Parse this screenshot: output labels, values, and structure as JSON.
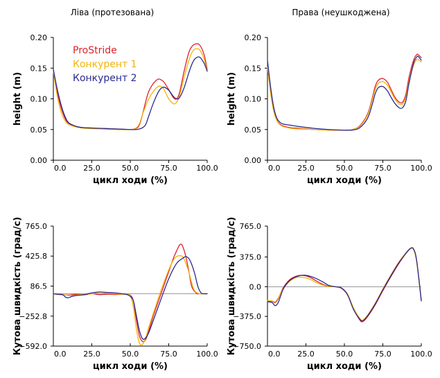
{
  "chart_data": [
    {
      "type": "line",
      "title": "Ліва (протезована)",
      "xlabel": "цикл ходи (%)",
      "ylabel": "height (m)",
      "xlim": [
        0,
        100
      ],
      "ylim": [
        0,
        0.2
      ],
      "xticks": [
        0,
        25,
        50,
        75,
        100
      ],
      "xtick_labels": [
        "0.0",
        "25.0",
        "50.0",
        "75.0",
        "100.0"
      ],
      "yticks": [
        0,
        0.05,
        0.1,
        0.15,
        0.2
      ],
      "ytick_labels": [
        "0.00",
        "0.05",
        "0.10",
        "0.15",
        "0.20"
      ],
      "legend": "top-left",
      "series": [
        {
          "name": "ProStride",
          "color": "#e0202a",
          "x": [
            0,
            2,
            4,
            6,
            8,
            10,
            15,
            20,
            30,
            40,
            50,
            54,
            56,
            58,
            60,
            62,
            65,
            68,
            70,
            72,
            75,
            78,
            80,
            82,
            85,
            88,
            90,
            92,
            95,
            98,
            100
          ],
          "y": [
            0.145,
            0.118,
            0.095,
            0.078,
            0.066,
            0.06,
            0.055,
            0.053,
            0.052,
            0.051,
            0.05,
            0.052,
            0.058,
            0.075,
            0.095,
            0.112,
            0.125,
            0.132,
            0.131,
            0.127,
            0.115,
            0.102,
            0.1,
            0.11,
            0.145,
            0.175,
            0.185,
            0.189,
            0.188,
            0.172,
            0.148
          ]
        },
        {
          "name": "Конкурент 1",
          "color": "#f2b40a",
          "x": [
            0,
            2,
            4,
            6,
            8,
            10,
            15,
            20,
            30,
            40,
            50,
            54,
            56,
            58,
            60,
            62,
            65,
            68,
            70,
            72,
            75,
            78,
            80,
            82,
            85,
            88,
            90,
            92,
            95,
            98,
            100
          ],
          "y": [
            0.145,
            0.112,
            0.088,
            0.072,
            0.063,
            0.058,
            0.054,
            0.052,
            0.051,
            0.05,
            0.05,
            0.053,
            0.06,
            0.075,
            0.088,
            0.1,
            0.112,
            0.12,
            0.12,
            0.115,
            0.1,
            0.092,
            0.094,
            0.105,
            0.135,
            0.162,
            0.175,
            0.181,
            0.18,
            0.165,
            0.145
          ]
        },
        {
          "name": "Конкурент 2",
          "color": "#2a2a8f",
          "x": [
            0,
            2,
            4,
            6,
            8,
            10,
            15,
            20,
            30,
            40,
            50,
            54,
            56,
            58,
            60,
            62,
            65,
            68,
            70,
            72,
            75,
            78,
            80,
            82,
            85,
            88,
            90,
            92,
            95,
            98,
            100
          ],
          "y": [
            0.148,
            0.122,
            0.1,
            0.082,
            0.069,
            0.061,
            0.055,
            0.053,
            0.052,
            0.051,
            0.05,
            0.05,
            0.051,
            0.053,
            0.058,
            0.072,
            0.093,
            0.11,
            0.117,
            0.119,
            0.114,
            0.104,
            0.1,
            0.102,
            0.118,
            0.142,
            0.156,
            0.165,
            0.168,
            0.158,
            0.145
          ]
        }
      ]
    },
    {
      "type": "line",
      "title": "Права (неушкоджена)",
      "xlabel": "цикл ходи (%)",
      "ylabel": "height (m)",
      "xlim": [
        0,
        100
      ],
      "ylim": [
        0,
        0.2
      ],
      "xticks": [
        0,
        25,
        50,
        75,
        100
      ],
      "xtick_labels": [
        "0.0",
        "25.0",
        "50.0",
        "75.0",
        "100.0"
      ],
      "yticks": [
        0,
        0.05,
        0.1,
        0.15,
        0.2
      ],
      "ytick_labels": [
        "0.00",
        "0.05",
        "0.10",
        "0.15",
        "0.20"
      ],
      "series": [
        {
          "name": "ProStride",
          "color": "#e0202a",
          "x": [
            0,
            2,
            4,
            6,
            8,
            10,
            15,
            20,
            30,
            40,
            50,
            55,
            60,
            65,
            68,
            70,
            72,
            75,
            78,
            80,
            83,
            86,
            88,
            90,
            92,
            95,
            97,
            98,
            100
          ],
          "y": [
            0.16,
            0.115,
            0.083,
            0.066,
            0.059,
            0.056,
            0.053,
            0.052,
            0.05,
            0.049,
            0.049,
            0.05,
            0.056,
            0.075,
            0.1,
            0.12,
            0.13,
            0.133,
            0.127,
            0.117,
            0.102,
            0.094,
            0.095,
            0.108,
            0.135,
            0.163,
            0.172,
            0.172,
            0.167
          ]
        },
        {
          "name": "Конкурент 1",
          "color": "#f2b40a",
          "x": [
            0,
            2,
            4,
            6,
            8,
            10,
            15,
            20,
            30,
            40,
            50,
            55,
            60,
            65,
            68,
            70,
            72,
            75,
            78,
            80,
            83,
            86,
            88,
            90,
            92,
            95,
            97,
            98,
            100
          ],
          "y": [
            0.152,
            0.11,
            0.08,
            0.065,
            0.058,
            0.055,
            0.052,
            0.051,
            0.05,
            0.049,
            0.049,
            0.05,
            0.055,
            0.073,
            0.097,
            0.115,
            0.125,
            0.128,
            0.122,
            0.113,
            0.099,
            0.091,
            0.092,
            0.103,
            0.128,
            0.155,
            0.164,
            0.164,
            0.16
          ]
        },
        {
          "name": "Конкурент 2",
          "color": "#2a2a8f",
          "x": [
            0,
            2,
            4,
            6,
            8,
            10,
            15,
            20,
            30,
            40,
            50,
            55,
            60,
            65,
            68,
            70,
            72,
            75,
            78,
            80,
            83,
            86,
            88,
            90,
            92,
            95,
            97,
            98,
            100
          ],
          "y": [
            0.163,
            0.12,
            0.087,
            0.069,
            0.062,
            0.059,
            0.057,
            0.055,
            0.052,
            0.05,
            0.049,
            0.049,
            0.053,
            0.068,
            0.09,
            0.108,
            0.118,
            0.12,
            0.113,
            0.104,
            0.092,
            0.085,
            0.086,
            0.097,
            0.125,
            0.158,
            0.168,
            0.169,
            0.163
          ]
        }
      ]
    },
    {
      "type": "line",
      "title": "",
      "xlabel": "цикл ходи (%)",
      "ylabel": "Кутова швидкість (град/с)",
      "xlim": [
        0,
        100
      ],
      "ylim": [
        -592,
        765
      ],
      "xticks": [
        0,
        25,
        50,
        75,
        100
      ],
      "xtick_labels": [
        "0.0",
        "25.0",
        "50.0",
        "75.0",
        "100.0"
      ],
      "yticks": [
        -592.0,
        -252.8,
        86.5,
        425.8,
        765.0
      ],
      "ytick_labels": [
        "−592.0",
        "−252.8",
        "86.5",
        "425.8",
        "765.0"
      ],
      "zero_line": 0,
      "series": [
        {
          "name": "ProStride",
          "color": "#e0202a",
          "x": [
            0,
            5,
            10,
            15,
            20,
            25,
            30,
            35,
            40,
            45,
            48,
            50,
            52,
            54,
            56,
            58,
            60,
            62,
            65,
            70,
            75,
            78,
            80,
            82,
            83,
            84,
            86,
            88,
            90,
            93,
            95,
            97,
            100
          ],
          "y": [
            0,
            -10,
            -15,
            -5,
            -12,
            0,
            -10,
            -5,
            -8,
            -5,
            -8,
            -15,
            -80,
            -300,
            -480,
            -540,
            -520,
            -420,
            -250,
            0,
            250,
            400,
            480,
            550,
            560,
            540,
            430,
            260,
            80,
            5,
            0,
            0,
            0
          ]
        },
        {
          "name": "Конкурент 1",
          "color": "#f2b40a",
          "x": [
            0,
            5,
            10,
            15,
            20,
            25,
            30,
            35,
            40,
            45,
            48,
            50,
            52,
            54,
            56,
            58,
            60,
            62,
            65,
            70,
            75,
            78,
            80,
            82,
            84,
            86,
            88,
            90,
            92,
            95,
            97,
            100
          ],
          "y": [
            0,
            -5,
            -20,
            -15,
            -5,
            0,
            15,
            5,
            0,
            -5,
            -10,
            -20,
            -150,
            -400,
            -560,
            -570,
            -500,
            -380,
            -220,
            40,
            270,
            380,
            420,
            430,
            420,
            350,
            250,
            120,
            30,
            0,
            0,
            0
          ]
        },
        {
          "name": "Конкурент 2",
          "color": "#2a2a8f",
          "x": [
            0,
            3,
            6,
            8,
            10,
            12,
            15,
            20,
            25,
            30,
            35,
            40,
            45,
            48,
            50,
            52,
            54,
            56,
            58,
            60,
            62,
            65,
            70,
            75,
            80,
            84,
            86,
            88,
            90,
            92,
            94,
            96,
            98,
            100
          ],
          "y": [
            0,
            -5,
            -10,
            -40,
            -45,
            -30,
            -20,
            -10,
            10,
            20,
            15,
            10,
            0,
            -10,
            -30,
            -80,
            -250,
            -420,
            -510,
            -500,
            -440,
            -300,
            -60,
            170,
            340,
            400,
            420,
            400,
            330,
            220,
            80,
            10,
            0,
            0
          ]
        }
      ]
    },
    {
      "type": "line",
      "title": "",
      "xlabel": "цикл ходи (%)",
      "ylabel": "Кутова швидкість (град/с)",
      "xlim": [
        0,
        100
      ],
      "ylim": [
        -750,
        765
      ],
      "xticks": [
        0,
        25,
        50,
        75,
        100
      ],
      "xtick_labels": [
        "0.0",
        "25.0",
        "50.0",
        "75.0",
        "100.0"
      ],
      "yticks": [
        -750.0,
        -375.0,
        0.0,
        375.0,
        765.0
      ],
      "ytick_labels": [
        "−750.0",
        "−375.0",
        "0.0",
        "375.0",
        "765.0"
      ],
      "zero_line": 0,
      "series": [
        {
          "name": "ProStride",
          "color": "#e0202a",
          "x": [
            0,
            3,
            5,
            7,
            10,
            13,
            16,
            20,
            24,
            28,
            32,
            36,
            40,
            44,
            48,
            52,
            56,
            60,
            62,
            65,
            70,
            75,
            80,
            85,
            90,
            93,
            95,
            97,
            100
          ],
          "y": [
            -180,
            -185,
            -200,
            -150,
            -20,
            60,
            110,
            140,
            140,
            115,
            70,
            30,
            5,
            0,
            -20,
            -100,
            -280,
            -420,
            -440,
            -380,
            -230,
            -50,
            120,
            280,
            420,
            480,
            470,
            320,
            -180
          ]
        },
        {
          "name": "Конкурент 1",
          "color": "#f2b40a",
          "x": [
            0,
            3,
            5,
            7,
            10,
            13,
            16,
            20,
            24,
            28,
            32,
            36,
            40,
            44,
            48,
            52,
            56,
            60,
            62,
            65,
            70,
            75,
            80,
            85,
            90,
            93,
            95,
            97,
            100
          ],
          "y": [
            -175,
            -180,
            -190,
            -140,
            -30,
            40,
            90,
            120,
            115,
            90,
            50,
            20,
            0,
            0,
            -15,
            -90,
            -270,
            -400,
            -420,
            -360,
            -210,
            -30,
            140,
            300,
            430,
            480,
            465,
            310,
            -170
          ]
        },
        {
          "name": "Конкурент 2",
          "color": "#2a2a8f",
          "x": [
            0,
            3,
            5,
            7,
            10,
            13,
            16,
            20,
            24,
            28,
            32,
            36,
            40,
            44,
            48,
            52,
            56,
            60,
            62,
            65,
            70,
            75,
            80,
            85,
            90,
            93,
            95,
            97,
            100
          ],
          "y": [
            -190,
            -200,
            -240,
            -200,
            -40,
            50,
            100,
            135,
            145,
            130,
            100,
            60,
            15,
            0,
            -15,
            -100,
            -290,
            -410,
            -430,
            -370,
            -220,
            -40,
            130,
            290,
            420,
            485,
            475,
            330,
            -175
          ]
        }
      ]
    }
  ]
}
